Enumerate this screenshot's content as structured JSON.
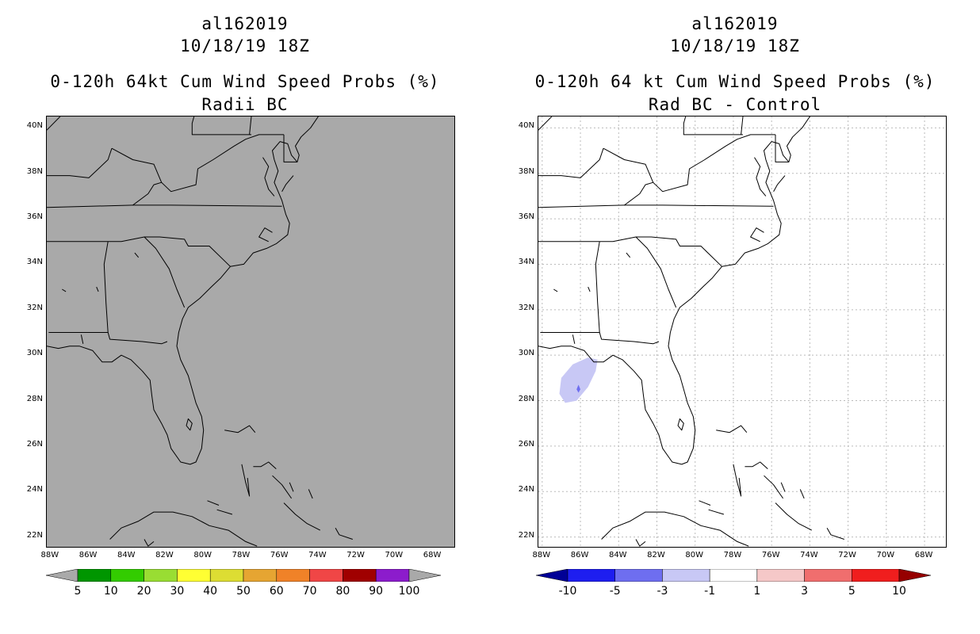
{
  "left": {
    "storm_id": "al162019",
    "datetime": "10/18/19 18Z",
    "product": "0-120h 64kt Cum Wind Speed Probs (%)",
    "subtitle": "Radii BC",
    "colorbar": {
      "labels": [
        "5",
        "10",
        "20",
        "30",
        "40",
        "50",
        "60",
        "70",
        "80",
        "90",
        "100"
      ],
      "colors": [
        "#a9a9a9",
        "#009600",
        "#33cc00",
        "#99dd33",
        "#ffff33",
        "#dddd33",
        "#e6a532",
        "#f08228",
        "#f04646",
        "#a00000",
        "#8c1ccc",
        "#a9a9a9"
      ]
    }
  },
  "right": {
    "storm_id": "al162019",
    "datetime": "10/18/19 18Z",
    "product": "0-120h 64 kt Cum Wind Speed Probs (%)",
    "subtitle": "Rad BC - Control",
    "colorbar": {
      "labels": [
        "-10",
        "-5",
        "-3",
        "-1",
        "1",
        "3",
        "5",
        "10"
      ],
      "colors": [
        "#000096",
        "#1e1ef0",
        "#6e6ef0",
        "#c8c8f5",
        "#ffffff",
        "#f5c8c8",
        "#f06e6e",
        "#f01e1e",
        "#960000"
      ]
    }
  },
  "axes": {
    "lat_labels": [
      "40N",
      "38N",
      "36N",
      "34N",
      "32N",
      "30N",
      "28N",
      "26N",
      "24N",
      "22N"
    ],
    "lon_labels": [
      "88W",
      "86W",
      "84W",
      "82W",
      "80W",
      "78W",
      "76W",
      "74W",
      "72W",
      "70W",
      "68W"
    ]
  }
}
